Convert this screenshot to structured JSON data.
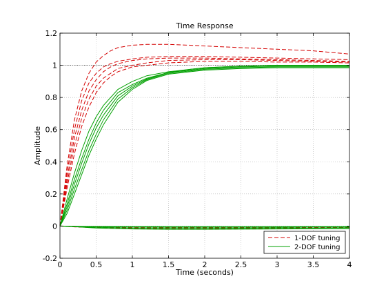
{
  "chart_data": {
    "type": "line",
    "title": "Time Response",
    "xlabel": "Time (seconds)",
    "ylabel": "Amplitude",
    "xlim": [
      0,
      4
    ],
    "ylim": [
      -0.2,
      1.2
    ],
    "xticks": [
      0,
      0.5,
      1,
      1.5,
      2,
      2.5,
      3,
      3.5,
      4
    ],
    "yticks": [
      -0.2,
      0,
      0.2,
      0.4,
      0.6,
      0.8,
      1,
      1.2
    ],
    "xtick_labels": [
      "0",
      "0.5",
      "1",
      "1.5",
      "2",
      "2.5",
      "3",
      "3.5",
      "4"
    ],
    "ytick_labels": [
      "-0.2",
      "0",
      "0.2",
      "0.4",
      "0.6",
      "0.8",
      "1",
      "1.2"
    ],
    "grid": true,
    "reference_line": {
      "y": 1
    },
    "legend": {
      "placement": "bottom-right",
      "entries": [
        {
          "label": "1-DOF tuning",
          "color": "#d40000",
          "style": "dashed"
        },
        {
          "label": "2-DOF tuning",
          "color": "#00a000",
          "style": "solid"
        }
      ]
    },
    "series": [
      {
        "group": 0,
        "kind": "response",
        "color": "#d40000",
        "style": "dashed",
        "x": [
          0,
          0.1,
          0.2,
          0.3,
          0.4,
          0.5,
          0.6,
          0.7,
          0.8,
          1.0,
          1.2,
          1.5,
          1.8,
          2.0,
          2.5,
          3.0,
          3.5,
          4.0
        ],
        "y": [
          0,
          0.38,
          0.66,
          0.84,
          0.95,
          1.02,
          1.06,
          1.09,
          1.11,
          1.125,
          1.13,
          1.13,
          1.125,
          1.12,
          1.11,
          1.1,
          1.09,
          1.07
        ]
      },
      {
        "group": 0,
        "kind": "response",
        "color": "#d40000",
        "style": "dashed",
        "x": [
          0,
          0.1,
          0.2,
          0.3,
          0.4,
          0.5,
          0.6,
          0.7,
          0.8,
          1.0,
          1.2,
          1.5,
          2.0,
          2.5,
          3.0,
          3.5,
          4.0
        ],
        "y": [
          0,
          0.34,
          0.6,
          0.78,
          0.89,
          0.95,
          0.99,
          1.01,
          1.025,
          1.04,
          1.05,
          1.055,
          1.055,
          1.05,
          1.045,
          1.04,
          1.035
        ]
      },
      {
        "group": 0,
        "kind": "response",
        "color": "#d40000",
        "style": "dashed",
        "x": [
          0,
          0.1,
          0.2,
          0.3,
          0.4,
          0.5,
          0.6,
          0.7,
          0.8,
          1.0,
          1.2,
          1.5,
          2.0,
          2.5,
          3.0,
          3.5,
          4.0
        ],
        "y": [
          0,
          0.3,
          0.55,
          0.72,
          0.84,
          0.91,
          0.96,
          0.99,
          1.01,
          1.03,
          1.04,
          1.045,
          1.045,
          1.04,
          1.035,
          1.03,
          1.025
        ]
      },
      {
        "group": 0,
        "kind": "response",
        "color": "#d40000",
        "style": "dashed",
        "x": [
          0,
          0.1,
          0.2,
          0.3,
          0.4,
          0.5,
          0.6,
          0.7,
          0.8,
          1.0,
          1.2,
          1.5,
          2.0,
          2.5,
          3.0,
          3.5,
          4.0
        ],
        "y": [
          0,
          0.27,
          0.5,
          0.67,
          0.79,
          0.87,
          0.92,
          0.95,
          0.98,
          1.0,
          1.015,
          1.03,
          1.035,
          1.035,
          1.03,
          1.025,
          1.02
        ]
      },
      {
        "group": 0,
        "kind": "response",
        "color": "#d40000",
        "style": "dashed",
        "x": [
          0,
          0.1,
          0.2,
          0.3,
          0.4,
          0.5,
          0.6,
          0.7,
          0.8,
          1.0,
          1.2,
          1.5,
          2.0,
          2.5,
          3.0,
          3.5,
          4.0
        ],
        "y": [
          0,
          0.24,
          0.45,
          0.62,
          0.74,
          0.83,
          0.89,
          0.93,
          0.96,
          0.99,
          1.0,
          1.015,
          1.025,
          1.025,
          1.02,
          1.02,
          1.015
        ]
      },
      {
        "group": 1,
        "kind": "response",
        "color": "#00a000",
        "style": "solid",
        "x": [
          0,
          0.1,
          0.2,
          0.3,
          0.4,
          0.5,
          0.6,
          0.8,
          1.0,
          1.2,
          1.5,
          1.8,
          2.0,
          2.5,
          3.0,
          3.5,
          4.0
        ],
        "y": [
          0,
          0.17,
          0.33,
          0.47,
          0.59,
          0.68,
          0.75,
          0.85,
          0.9,
          0.935,
          0.96,
          0.975,
          0.985,
          0.995,
          1.0,
          1.0,
          1.0
        ]
      },
      {
        "group": 1,
        "kind": "response",
        "color": "#00a000",
        "style": "solid",
        "x": [
          0,
          0.1,
          0.2,
          0.3,
          0.4,
          0.5,
          0.6,
          0.8,
          1.0,
          1.2,
          1.5,
          1.8,
          2.0,
          2.5,
          3.0,
          3.5,
          4.0
        ],
        "y": [
          0,
          0.14,
          0.29,
          0.42,
          0.54,
          0.64,
          0.72,
          0.83,
          0.88,
          0.92,
          0.955,
          0.975,
          0.985,
          0.995,
          1.0,
          1.0,
          1.0
        ]
      },
      {
        "group": 1,
        "kind": "response",
        "color": "#00a000",
        "style": "solid",
        "x": [
          0,
          0.1,
          0.2,
          0.3,
          0.4,
          0.5,
          0.6,
          0.8,
          1.0,
          1.2,
          1.5,
          1.8,
          2.0,
          2.5,
          3.0,
          3.5,
          4.0
        ],
        "y": [
          0,
          0.12,
          0.26,
          0.39,
          0.51,
          0.61,
          0.69,
          0.81,
          0.87,
          0.915,
          0.955,
          0.97,
          0.98,
          0.99,
          0.995,
          0.995,
          0.995
        ]
      },
      {
        "group": 1,
        "kind": "response",
        "color": "#00a000",
        "style": "solid",
        "x": [
          0,
          0.1,
          0.2,
          0.3,
          0.4,
          0.5,
          0.6,
          0.8,
          1.0,
          1.2,
          1.5,
          1.8,
          2.0,
          2.5,
          3.0,
          3.5,
          4.0
        ],
        "y": [
          0,
          0.1,
          0.23,
          0.35,
          0.47,
          0.57,
          0.66,
          0.79,
          0.86,
          0.91,
          0.95,
          0.965,
          0.975,
          0.985,
          0.99,
          0.99,
          0.99
        ]
      },
      {
        "group": 1,
        "kind": "response",
        "color": "#00a000",
        "style": "solid",
        "x": [
          0,
          0.1,
          0.2,
          0.3,
          0.4,
          0.5,
          0.6,
          0.8,
          1.0,
          1.2,
          1.5,
          1.8,
          2.0,
          2.5,
          3.0,
          3.5,
          4.0
        ],
        "y": [
          0,
          0.08,
          0.2,
          0.32,
          0.44,
          0.54,
          0.63,
          0.77,
          0.85,
          0.905,
          0.945,
          0.96,
          0.97,
          0.98,
          0.985,
          0.985,
          0.985
        ]
      },
      {
        "group": 0,
        "kind": "disturbance",
        "color": "#d40000",
        "style": "dashed",
        "x": [
          0,
          0.2,
          0.5,
          1.0,
          1.5,
          2.0,
          2.5,
          3.0,
          3.5,
          4.0
        ],
        "y": [
          0,
          -0.005,
          -0.01,
          -0.015,
          -0.018,
          -0.018,
          -0.016,
          -0.014,
          -0.012,
          -0.01
        ]
      },
      {
        "group": 0,
        "kind": "disturbance",
        "color": "#d40000",
        "style": "dashed",
        "x": [
          0,
          0.2,
          0.5,
          1.0,
          1.5,
          2.0,
          2.5,
          3.0,
          3.5,
          4.0
        ],
        "y": [
          0,
          -0.003,
          -0.008,
          -0.012,
          -0.013,
          -0.013,
          -0.012,
          -0.011,
          -0.01,
          -0.009
        ]
      },
      {
        "group": 0,
        "kind": "disturbance",
        "color": "#d40000",
        "style": "dashed",
        "x": [
          0,
          0.2,
          0.5,
          1.0,
          1.5,
          2.0,
          2.5,
          3.0,
          3.5,
          4.0
        ],
        "y": [
          0,
          -0.002,
          -0.005,
          -0.008,
          -0.009,
          -0.009,
          -0.009,
          -0.008,
          -0.008,
          -0.007
        ]
      },
      {
        "group": 1,
        "kind": "disturbance",
        "color": "#00a000",
        "style": "solid",
        "x": [
          0,
          0.2,
          0.5,
          1.0,
          1.5,
          2.0,
          2.5,
          3.0,
          3.5,
          4.0
        ],
        "y": [
          0,
          -0.004,
          -0.012,
          -0.018,
          -0.02,
          -0.02,
          -0.019,
          -0.018,
          -0.017,
          -0.016
        ]
      },
      {
        "group": 1,
        "kind": "disturbance",
        "color": "#00a000",
        "style": "solid",
        "x": [
          0,
          0.2,
          0.5,
          1.0,
          1.5,
          2.0,
          2.5,
          3.0,
          3.5,
          4.0
        ],
        "y": [
          0,
          -0.003,
          -0.008,
          -0.012,
          -0.013,
          -0.013,
          -0.013,
          -0.012,
          -0.012,
          -0.011
        ]
      },
      {
        "group": 1,
        "kind": "disturbance",
        "color": "#00a000",
        "style": "solid",
        "x": [
          0,
          0.2,
          0.5,
          1.0,
          1.5,
          2.0,
          2.5,
          3.0,
          3.5,
          4.0
        ],
        "y": [
          0,
          -0.002,
          -0.004,
          -0.006,
          -0.007,
          -0.007,
          -0.007,
          -0.007,
          -0.006,
          -0.006
        ]
      },
      {
        "group": 1,
        "kind": "disturbance",
        "color": "#00a000",
        "style": "solid",
        "x": [
          0,
          0.2,
          0.5,
          1.0,
          1.5,
          2.0,
          2.5,
          3.0,
          3.5,
          4.0
        ],
        "y": [
          0,
          -0.001,
          -0.002,
          -0.003,
          -0.003,
          -0.003,
          -0.003,
          -0.003,
          -0.003,
          -0.003
        ]
      }
    ]
  }
}
